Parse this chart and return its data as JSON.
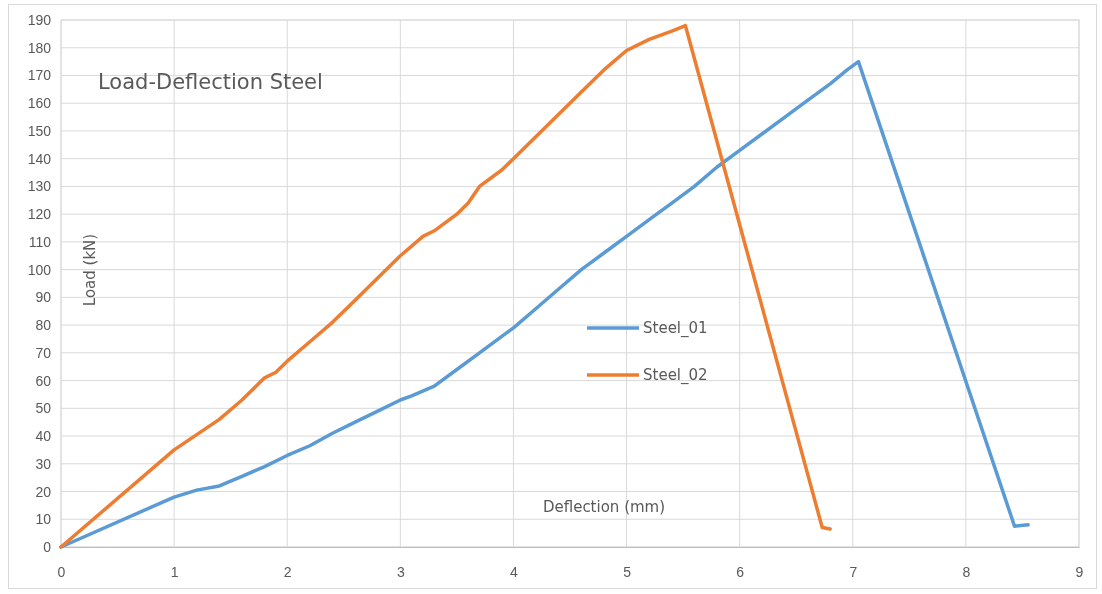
{
  "chart_data": {
    "type": "line",
    "title": "Load-Deflection Steel",
    "xlabel": "Deflection (mm)",
    "ylabel": "Load (kN)",
    "xlim": [
      0,
      9
    ],
    "xticks": [
      0,
      1,
      2,
      3,
      4,
      5,
      6,
      7,
      8,
      9
    ],
    "ylim": [
      0,
      190
    ],
    "yticks": [
      0,
      10,
      20,
      30,
      40,
      50,
      60,
      70,
      80,
      90,
      100,
      110,
      120,
      130,
      140,
      150,
      160,
      170,
      180,
      190
    ],
    "grid": true,
    "legend": "right",
    "marker": "none",
    "line_style": "solid",
    "series": [
      {
        "name": "Steel_01",
        "color": "#5b9bd5",
        "x": [
          0,
          1,
          1.2,
          1.4,
          1.6,
          1.8,
          2,
          2.2,
          2.4,
          2.6,
          2.8,
          3,
          3.1,
          3.3,
          3.5,
          3.7,
          3.9,
          4,
          4.2,
          4.4,
          4.6,
          4.8,
          5,
          5.2,
          5.4,
          5.6,
          5.8,
          6,
          6.2,
          6.4,
          6.6,
          6.8,
          6.95,
          7.05,
          8.43,
          8.55
        ],
        "values": [
          0,
          18,
          20.5,
          22,
          25.5,
          29,
          33,
          36.5,
          41,
          45,
          49,
          53,
          54.5,
          58,
          64,
          70,
          76,
          79,
          86,
          93,
          100,
          106,
          112,
          118,
          124,
          130,
          137,
          143,
          149,
          155,
          161,
          167,
          172,
          175,
          7.5,
          8
        ]
      },
      {
        "name": "Steel_02",
        "color": "#ed7d31",
        "x": [
          0,
          1,
          1.2,
          1.4,
          1.6,
          1.8,
          1.9,
          2,
          2.2,
          2.4,
          2.6,
          2.8,
          3,
          3.2,
          3.3,
          3.5,
          3.6,
          3.7,
          3.9,
          4,
          4.2,
          4.4,
          4.6,
          4.8,
          5,
          5.2,
          5.4,
          5.52,
          6.73,
          6.8
        ],
        "values": [
          0,
          35,
          40.5,
          46,
          53,
          61,
          63,
          67,
          74,
          81,
          89,
          97,
          105,
          112,
          114,
          120,
          124,
          130,
          136,
          140,
          148,
          156,
          164,
          172,
          179,
          183,
          186,
          188,
          7,
          6.5
        ]
      }
    ]
  }
}
